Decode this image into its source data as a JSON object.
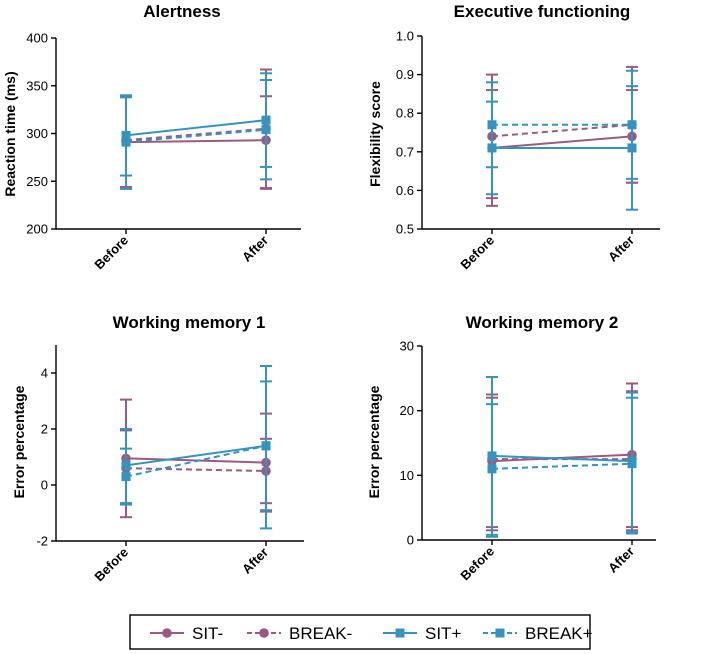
{
  "colors": {
    "purple": "#9b5a82",
    "blue": "#3593bf"
  },
  "legend": [
    {
      "label": "SIT-",
      "color": "#9b5a82",
      "dash": false,
      "marker": "circle"
    },
    {
      "label": "BREAK-",
      "color": "#9b5a82",
      "dash": true,
      "marker": "circle"
    },
    {
      "label": "SIT+",
      "color": "#3593bf",
      "dash": false,
      "marker": "square"
    },
    {
      "label": "BREAK+",
      "color": "#3593bf",
      "dash": true,
      "marker": "square"
    }
  ],
  "chart_data": [
    {
      "type": "line",
      "title": "Alertness",
      "ylabel": "Reaction time (ms)",
      "categories": [
        "Before",
        "After"
      ],
      "ylim": [
        200,
        400
      ],
      "yticks": [
        "200",
        "250",
        "300",
        "350",
        "400"
      ],
      "series": [
        {
          "name": "SIT-",
          "values": [
            291,
            293
          ],
          "err_low": [
            243,
            243
          ],
          "err_high": [
            339,
            339
          ]
        },
        {
          "name": "BREAK-",
          "values": [
            293,
            305
          ],
          "err_low": [
            244,
            242
          ],
          "err_high": [
            338,
            367
          ]
        },
        {
          "name": "SIT+",
          "values": [
            298,
            314
          ],
          "err_low": [
            256,
            265
          ],
          "err_high": [
            340,
            363
          ]
        },
        {
          "name": "BREAK+",
          "values": [
            291,
            304
          ],
          "err_low": [
            242,
            252
          ],
          "err_high": [
            338,
            356
          ]
        }
      ]
    },
    {
      "type": "line",
      "title": "Executive functioning",
      "ylabel": "Flexibility score",
      "categories": [
        "Before",
        "After"
      ],
      "ylim": [
        0.5,
        1.0
      ],
      "yticks": [
        "0.5",
        "0.6",
        "0.7",
        "0.8",
        "0.9",
        "1.0"
      ],
      "series": [
        {
          "name": "SIT-",
          "values": [
            0.71,
            0.74
          ],
          "err_low": [
            0.56,
            0.62
          ],
          "err_high": [
            0.86,
            0.86
          ]
        },
        {
          "name": "BREAK-",
          "values": [
            0.74,
            0.77
          ],
          "err_low": [
            0.58,
            0.62
          ],
          "err_high": [
            0.9,
            0.92
          ]
        },
        {
          "name": "SIT+",
          "values": [
            0.71,
            0.71
          ],
          "err_low": [
            0.59,
            0.55
          ],
          "err_high": [
            0.83,
            0.87
          ]
        },
        {
          "name": "BREAK+",
          "values": [
            0.77,
            0.77
          ],
          "err_low": [
            0.66,
            0.63
          ],
          "err_high": [
            0.88,
            0.91
          ]
        }
      ]
    },
    {
      "type": "line",
      "title": "Working memory 1",
      "ylabel": "Error percentage",
      "categories": [
        "Before",
        "After"
      ],
      "ylim": [
        -2,
        5
      ],
      "yticks": [
        "-2",
        "0",
        "2",
        "4"
      ],
      "series": [
        {
          "name": "SIT-",
          "values": [
            0.95,
            0.8
          ],
          "err_low": [
            -1.15,
            -0.95
          ],
          "err_high": [
            3.05,
            2.55
          ]
        },
        {
          "name": "BREAK-",
          "values": [
            0.6,
            0.5
          ],
          "err_low": [
            -0.65,
            -0.65
          ],
          "err_high": [
            1.95,
            1.65
          ]
        },
        {
          "name": "SIT+",
          "values": [
            0.7,
            1.4
          ],
          "err_low": [
            -0.65,
            -1.55
          ],
          "err_high": [
            2.0,
            4.25
          ]
        },
        {
          "name": "BREAK+",
          "values": [
            0.3,
            1.4
          ],
          "err_low": [
            -0.7,
            -0.9
          ],
          "err_high": [
            1.3,
            3.7
          ]
        }
      ]
    },
    {
      "type": "line",
      "title": "Working memory 2",
      "ylabel": "Error percentage",
      "categories": [
        "Before",
        "After"
      ],
      "ylim": [
        0,
        30
      ],
      "yticks": [
        "0",
        "10",
        "20",
        "30"
      ],
      "series": [
        {
          "name": "SIT-",
          "values": [
            12.2,
            13.2
          ],
          "err_low": [
            2.0,
            2.0
          ],
          "err_high": [
            22.5,
            24.2
          ]
        },
        {
          "name": "BREAK-",
          "values": [
            12.5,
            12.5
          ],
          "err_low": [
            1.5,
            1.5
          ],
          "err_high": [
            22.0,
            23.0
          ]
        },
        {
          "name": "SIT+",
          "values": [
            13.0,
            12.2
          ],
          "err_low": [
            0.8,
            1.2
          ],
          "err_high": [
            25.2,
            22.8
          ]
        },
        {
          "name": "BREAK+",
          "values": [
            11.0,
            11.8
          ],
          "err_low": [
            0.5,
            1.0
          ],
          "err_high": [
            21.0,
            22.0
          ]
        }
      ]
    }
  ]
}
